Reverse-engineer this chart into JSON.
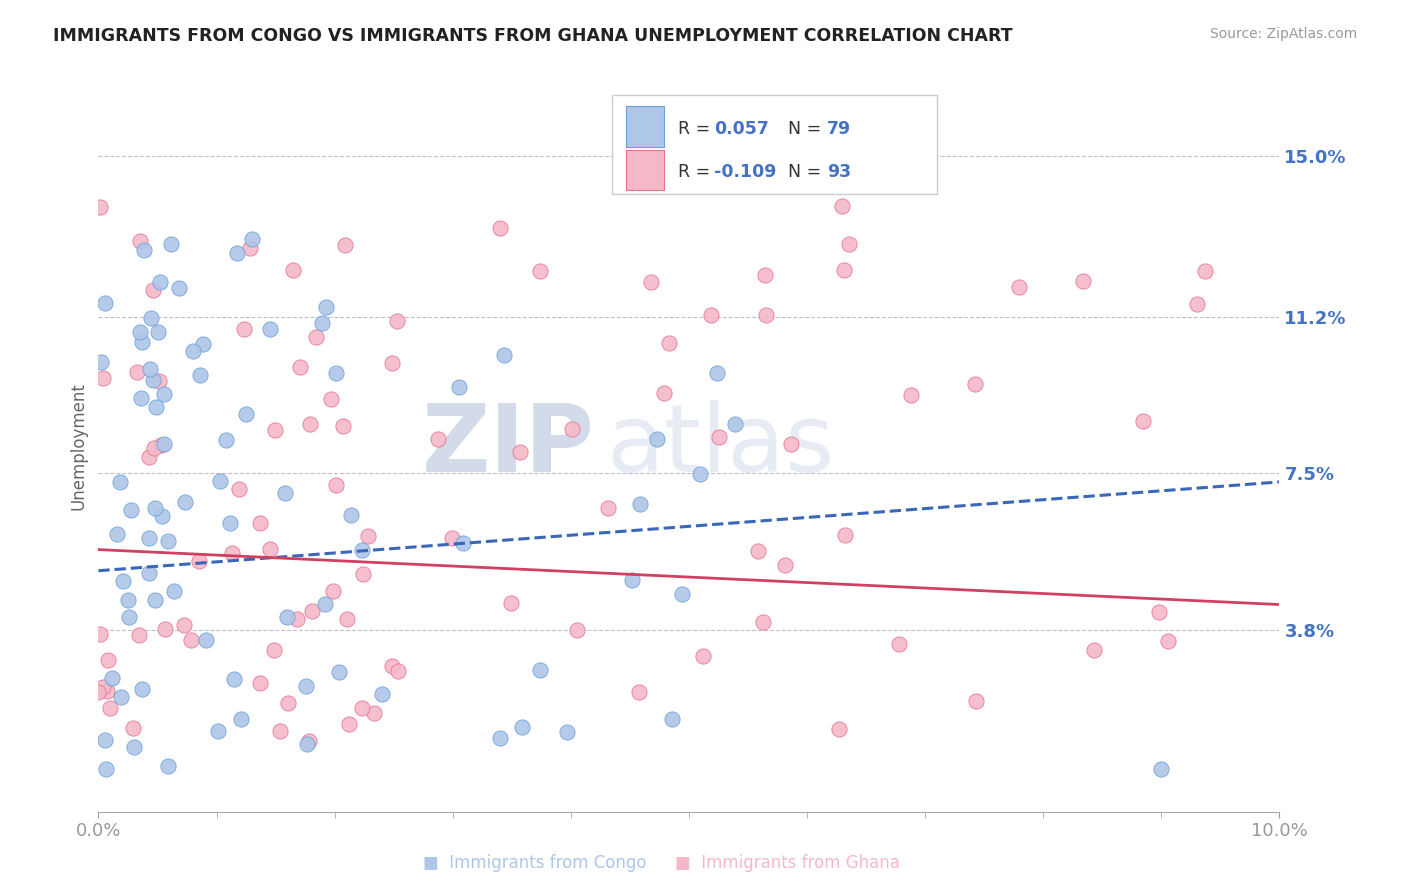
{
  "title": "IMMIGRANTS FROM CONGO VS IMMIGRANTS FROM GHANA UNEMPLOYMENT CORRELATION CHART",
  "source": "Source: ZipAtlas.com",
  "ylabel": "Unemployment",
  "yticks": [
    0.038,
    0.075,
    0.112,
    0.15
  ],
  "ytick_labels": [
    "3.8%",
    "7.5%",
    "11.2%",
    "15.0%"
  ],
  "xlim": [
    0.0,
    0.1
  ],
  "ylim": [
    -0.005,
    0.168
  ],
  "congo_color": "#aec6e8",
  "ghana_color": "#f5b8c8",
  "congo_edge": "#6a9fd8",
  "ghana_edge": "#e87090",
  "trend_congo_color": "#3a68b8",
  "trend_ghana_color": "#d04060",
  "watermark_zip": "ZIP",
  "watermark_atlas": "atlas",
  "bg_color": "#ffffff",
  "grid_color": "#c0c0d0",
  "title_color": "#222222",
  "tick_label_color": "#4472c4",
  "legend_label_color": "#4472c4",
  "bottom_label_congo": "Immigrants from Congo",
  "bottom_label_ghana": "Immigrants from Ghana",
  "congo_trend_y0": 0.052,
  "congo_trend_y1": 0.073,
  "ghana_trend_y0": 0.057,
  "ghana_trend_y1": 0.044
}
